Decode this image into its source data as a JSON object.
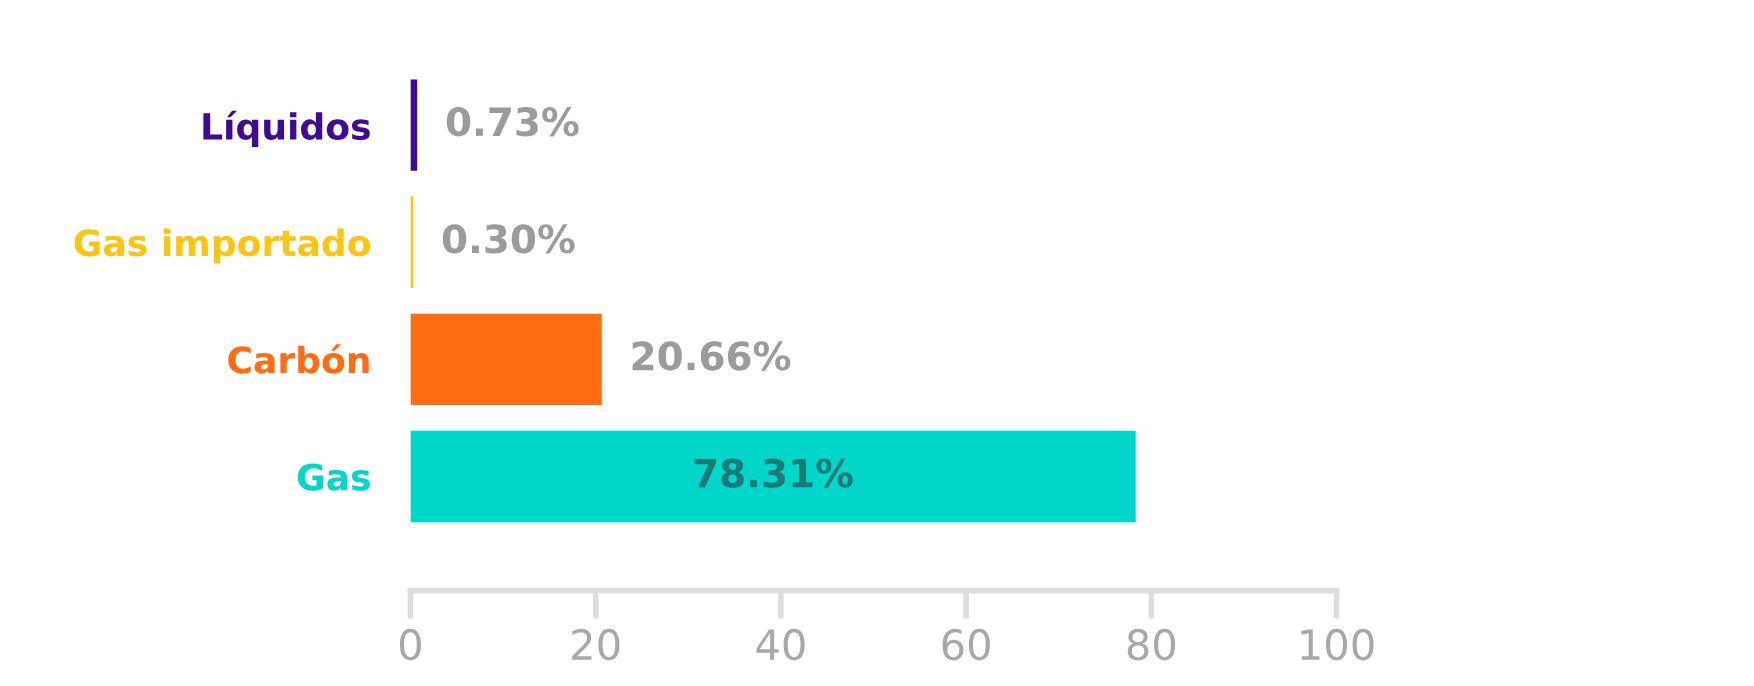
{
  "chart_data": {
    "type": "bar",
    "orientation": "horizontal",
    "categories": [
      "Líquidos",
      "Gas importado",
      "Carbón",
      "Gas"
    ],
    "values": [
      0.73,
      0.3,
      20.66,
      78.31
    ],
    "colors": [
      "#3e0a96",
      "#ffc40d",
      "#ff6c12",
      "#00d6c9"
    ],
    "xlim": [
      0,
      100
    ],
    "xticks": [
      0,
      20,
      40,
      60,
      80,
      100
    ],
    "value_labels": [
      "0.73%",
      "0.30%",
      "20.66%",
      "78.31%"
    ],
    "grid": false,
    "legend": false
  }
}
